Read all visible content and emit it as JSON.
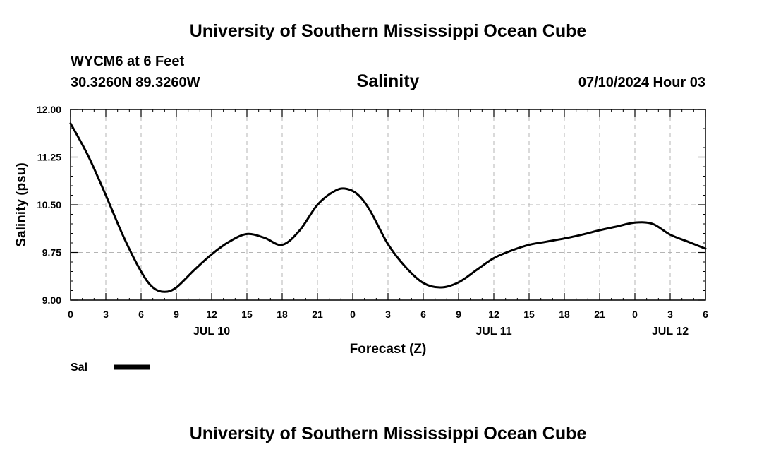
{
  "header": {
    "title": "University of Southern Mississippi Ocean Cube",
    "station": "WYCM6 at 6 Feet",
    "coords": "30.3260N  89.3260W",
    "plot_title": "Salinity",
    "datetime": "07/10/2024 Hour 03"
  },
  "footer": {
    "title": "University of Southern Mississippi Ocean Cube"
  },
  "chart_data": {
    "type": "line",
    "title": "Salinity",
    "xlabel": "Forecast (Z)",
    "ylabel": "Salinity (psu)",
    "ylim": [
      9.0,
      12.0
    ],
    "xlim": [
      0,
      54
    ],
    "x_unit": "hours since 07/10/2024 00Z",
    "grid": true,
    "yticks": [
      9.0,
      9.75,
      10.5,
      11.25,
      12.0
    ],
    "ytick_labels": [
      "9.00",
      "9.75",
      "10.50",
      "11.25",
      "12.00"
    ],
    "xticks": [
      0,
      3,
      6,
      9,
      12,
      15,
      18,
      21,
      24,
      27,
      30,
      33,
      36,
      39,
      42,
      45,
      48,
      51,
      54
    ],
    "xtick_labels": [
      "0",
      "3",
      "6",
      "9",
      "12",
      "15",
      "18",
      "21",
      "0",
      "3",
      "6",
      "9",
      "12",
      "15",
      "18",
      "21",
      "0",
      "3",
      "6"
    ],
    "date_labels": [
      {
        "x": 12,
        "label": "JUL 10"
      },
      {
        "x": 36,
        "label": "JUL 11"
      },
      {
        "x": 51,
        "label": "JUL 12"
      }
    ],
    "legend": {
      "position": "bottom-left",
      "label": "Sal"
    },
    "series": [
      {
        "name": "Sal",
        "x": [
          0,
          1.5,
          3,
          4.5,
          6,
          7,
          8,
          9,
          10.5,
          12,
          13.5,
          15,
          16.5,
          18,
          19.5,
          21,
          22.5,
          23.5,
          24.5,
          25.5,
          27,
          28.5,
          30,
          31.5,
          33,
          34.5,
          36,
          37.5,
          39,
          40.5,
          42,
          43.5,
          45,
          46.5,
          48,
          49.5,
          51,
          52.5,
          54
        ],
        "y": [
          11.78,
          11.27,
          10.65,
          10.0,
          9.45,
          9.2,
          9.13,
          9.2,
          9.47,
          9.72,
          9.92,
          10.04,
          9.98,
          9.87,
          10.1,
          10.5,
          10.72,
          10.75,
          10.65,
          10.4,
          9.88,
          9.52,
          9.27,
          9.2,
          9.28,
          9.47,
          9.66,
          9.78,
          9.87,
          9.92,
          9.97,
          10.03,
          10.1,
          10.16,
          10.22,
          10.2,
          10.03,
          9.92,
          9.81
        ]
      }
    ]
  }
}
